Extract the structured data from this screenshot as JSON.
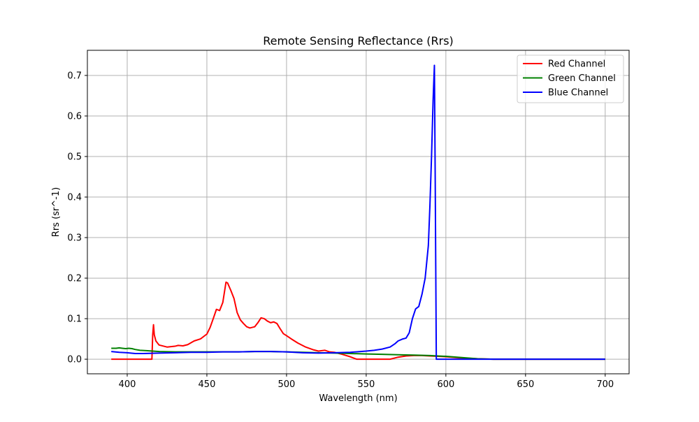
{
  "chart_data": {
    "type": "line",
    "title": "Remote Sensing Reflectance (Rrs)",
    "xlabel": "Wavelength (nm)",
    "ylabel": "Rrs (sr^-1)",
    "xlim": [
      375,
      715
    ],
    "ylim": [
      -0.036,
      0.762
    ],
    "xticks": [
      400,
      450,
      500,
      550,
      600,
      650,
      700
    ],
    "yticks": [
      0.0,
      0.1,
      0.2,
      0.3,
      0.4,
      0.5,
      0.6,
      0.7
    ],
    "xtick_labels": [
      "400",
      "450",
      "500",
      "550",
      "600",
      "650",
      "700"
    ],
    "ytick_labels": [
      "0.0",
      "0.1",
      "0.2",
      "0.3",
      "0.4",
      "0.5",
      "0.6",
      "0.7"
    ],
    "grid": true,
    "legend_position": "top-right",
    "series": [
      {
        "name": "Red Channel",
        "color": "#ff0000",
        "x": [
          390,
          400,
          410,
          415.5,
          416,
          416.5,
          417,
          418,
          420,
          425,
          430,
          432,
          435,
          438,
          442,
          446,
          450,
          452,
          454,
          456,
          458,
          460,
          462,
          463,
          465,
          467,
          469,
          471,
          473,
          475,
          477,
          480,
          482,
          484,
          486,
          488,
          490,
          492,
          494,
          496,
          498,
          500,
          503,
          507,
          512,
          517,
          520,
          524,
          527,
          530,
          535,
          540,
          544,
          550,
          555,
          560,
          565,
          570,
          575,
          580,
          585,
          590,
          595,
          600,
          610,
          620,
          630,
          650,
          700
        ],
        "y": [
          0.0,
          0.0,
          0.0,
          0.0,
          0.06,
          0.085,
          0.06,
          0.045,
          0.035,
          0.03,
          0.032,
          0.034,
          0.033,
          0.036,
          0.045,
          0.05,
          0.062,
          0.078,
          0.1,
          0.123,
          0.12,
          0.14,
          0.19,
          0.188,
          0.17,
          0.15,
          0.115,
          0.097,
          0.088,
          0.08,
          0.077,
          0.08,
          0.09,
          0.102,
          0.1,
          0.094,
          0.09,
          0.092,
          0.088,
          0.075,
          0.063,
          0.058,
          0.05,
          0.04,
          0.03,
          0.023,
          0.02,
          0.022,
          0.018,
          0.017,
          0.012,
          0.006,
          0.0,
          0.0,
          0.0,
          0.0,
          0.0,
          0.005,
          0.008,
          0.009,
          0.009,
          0.008,
          0.007,
          0.006,
          0.003,
          0.001,
          0.0,
          0.0,
          0.0
        ]
      },
      {
        "name": "Green Channel",
        "color": "#008000",
        "x": [
          390,
          393,
          395,
          397,
          399,
          401,
          403,
          405,
          408,
          412,
          420,
          430,
          440,
          450,
          460,
          470,
          480,
          490,
          500,
          510,
          520,
          530,
          540,
          550,
          560,
          570,
          580,
          590,
          600,
          610,
          620,
          630,
          650,
          700
        ],
        "y": [
          0.027,
          0.027,
          0.028,
          0.027,
          0.026,
          0.027,
          0.026,
          0.024,
          0.022,
          0.021,
          0.019,
          0.018,
          0.018,
          0.018,
          0.018,
          0.018,
          0.019,
          0.019,
          0.018,
          0.017,
          0.016,
          0.015,
          0.014,
          0.013,
          0.012,
          0.011,
          0.01,
          0.009,
          0.007,
          0.004,
          0.001,
          0.0,
          0.0,
          0.0
        ]
      },
      {
        "name": "Blue Channel",
        "color": "#0000ff",
        "x": [
          390,
          395,
          400,
          405,
          410,
          420,
          430,
          440,
          450,
          460,
          470,
          480,
          490,
          500,
          510,
          520,
          530,
          540,
          550,
          555,
          560,
          565,
          568,
          570,
          573,
          575,
          577,
          579,
          581,
          583,
          585,
          587,
          589,
          590,
          591,
          592,
          592.8,
          593.3,
          594,
          600,
          650,
          700
        ],
        "y": [
          0.019,
          0.017,
          0.016,
          0.014,
          0.014,
          0.015,
          0.016,
          0.017,
          0.017,
          0.018,
          0.018,
          0.019,
          0.019,
          0.018,
          0.016,
          0.015,
          0.016,
          0.017,
          0.02,
          0.022,
          0.025,
          0.03,
          0.038,
          0.045,
          0.05,
          0.052,
          0.065,
          0.1,
          0.124,
          0.13,
          0.16,
          0.2,
          0.28,
          0.38,
          0.5,
          0.64,
          0.725,
          0.45,
          0.0,
          0.0,
          0.0,
          0.0
        ]
      }
    ]
  }
}
